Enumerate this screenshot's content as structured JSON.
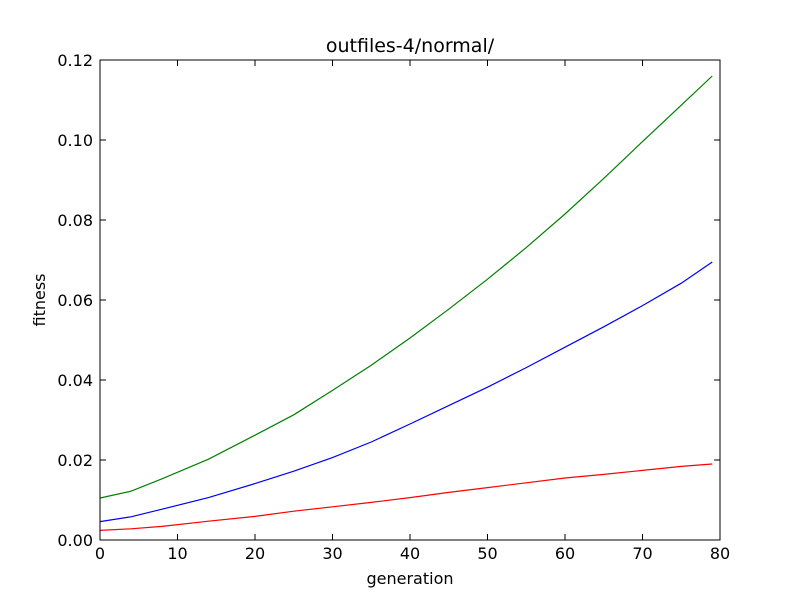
{
  "chart_data": {
    "type": "line",
    "title": "outfiles-4/normal/",
    "xlabel": "generation",
    "ylabel": "fitness",
    "xlim": [
      0,
      80
    ],
    "ylim": [
      0,
      0.12
    ],
    "xticks": [
      0,
      10,
      20,
      30,
      40,
      50,
      60,
      70,
      80
    ],
    "xtick_labels": [
      "0",
      "10",
      "20",
      "30",
      "40",
      "50",
      "60",
      "70",
      "80"
    ],
    "yticks": [
      0,
      0.02,
      0.04,
      0.06,
      0.08,
      0.1,
      0.12
    ],
    "ytick_labels": [
      "0.00",
      "0.02",
      "0.04",
      "0.06",
      "0.08",
      "0.10",
      "0.12"
    ],
    "grid": false,
    "x": [
      0,
      4,
      8,
      14,
      20,
      25,
      30,
      35,
      40,
      45,
      50,
      55,
      60,
      65,
      70,
      75,
      79
    ],
    "series": [
      {
        "color": "#008000",
        "values": [
          0.0105,
          0.0122,
          0.0153,
          0.0202,
          0.0262,
          0.0313,
          0.0374,
          0.0437,
          0.0505,
          0.0577,
          0.0652,
          0.0731,
          0.0815,
          0.0904,
          0.0996,
          0.1087,
          0.116
        ]
      },
      {
        "color": "#0000ff",
        "values": [
          0.0046,
          0.0058,
          0.0077,
          0.0106,
          0.0141,
          0.0172,
          0.0206,
          0.0245,
          0.029,
          0.0336,
          0.0382,
          0.0431,
          0.0482,
          0.0533,
          0.0586,
          0.0642,
          0.0695
        ]
      },
      {
        "color": "#ff0000",
        "values": [
          0.0024,
          0.0028,
          0.0034,
          0.0047,
          0.0059,
          0.0072,
          0.0083,
          0.0094,
          0.0106,
          0.0119,
          0.0131,
          0.0143,
          0.0155,
          0.0164,
          0.0174,
          0.0184,
          0.019
        ]
      }
    ]
  }
}
